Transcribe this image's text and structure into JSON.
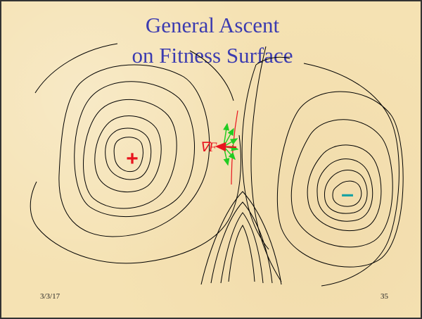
{
  "slide": {
    "title_line1": "General Ascent",
    "title_line2": "on Fitness Surface",
    "date": "3/3/17",
    "page_number": "35"
  },
  "diagram": {
    "gradient_label": "∇F",
    "maximum_marker": "+",
    "minimum_marker": "–",
    "colors": {
      "title": "#3b3bb0",
      "contour": "#000000",
      "maximum": "#e8141e",
      "minimum": "#1aa3a3",
      "gradient": "#e8141e",
      "steps": "#22cc22",
      "tangent": "#e8141e"
    }
  }
}
